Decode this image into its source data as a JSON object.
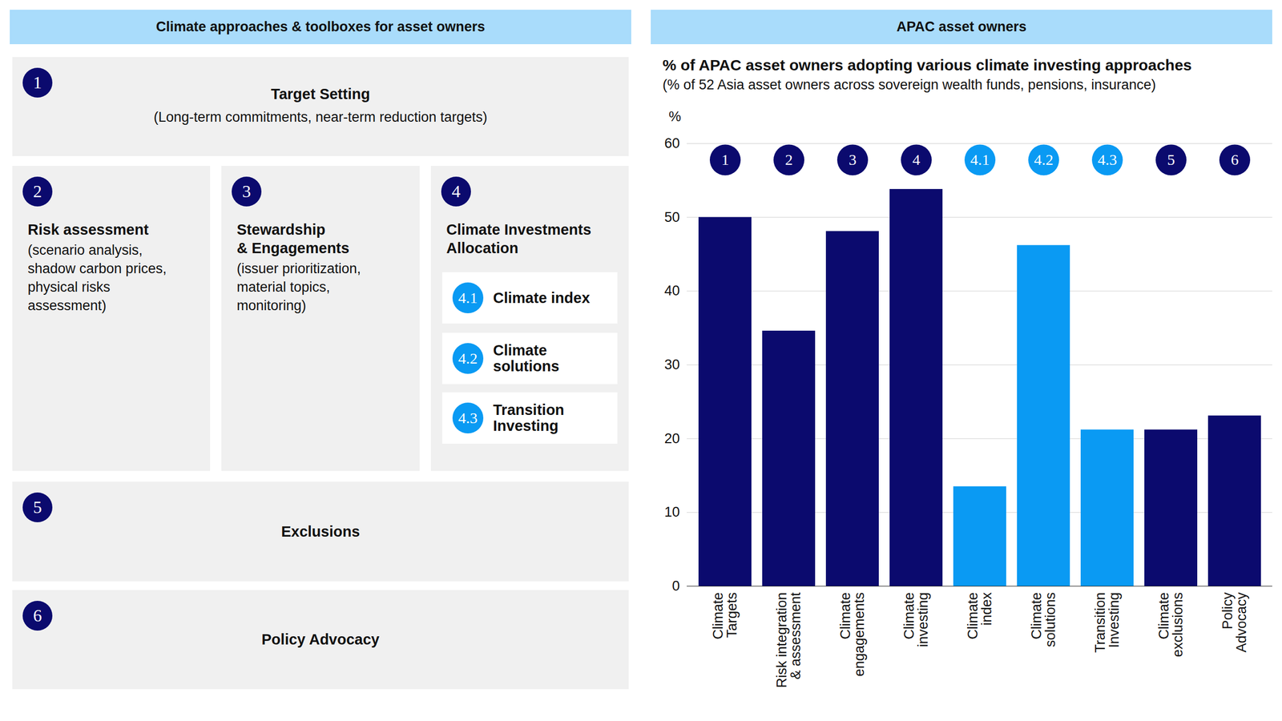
{
  "diagram": {
    "header": "Climate approaches & toolboxes for asset owners",
    "boxes": [
      {
        "badge": "1",
        "title": "Target Setting",
        "subtitle": "(Long-term commitments, near-term reduction targets)"
      },
      {
        "badge": "2",
        "title": "Risk assessment",
        "subtitle": "(scenario analysis,\nshadow carbon prices,\nphysical risks\nassessment)"
      },
      {
        "badge": "3",
        "title": "Stewardship\n& Engagements",
        "subtitle": "(issuer prioritization,\nmaterial topics,\nmonitoring)"
      },
      {
        "badge": "4",
        "title": "Climate Investments\nAllocation",
        "items": [
          {
            "badge": "4.1",
            "label": "Climate index"
          },
          {
            "badge": "4.2",
            "label": "Climate\nsolutions"
          },
          {
            "badge": "4.3",
            "label": "Transition\nInvesting"
          }
        ]
      },
      {
        "badge": "5",
        "title": "Exclusions"
      },
      {
        "badge": "6",
        "title": "Policy Advocacy"
      }
    ]
  },
  "chart_data": {
    "type": "bar",
    "header": "APAC asset owners",
    "title": "% of APAC asset owners adopting various climate investing approaches",
    "subtitle": "(% of 52 Asia asset owners across sovereign wealth funds, pensions, insurance)",
    "y_label": "%",
    "categories": [
      "Climate\nTargets",
      "Risk integration\n& assessment",
      "Climate\nengagements",
      "Climate\ninvesting",
      "Climate\nindex",
      "Climate\nsolutions",
      "Transition\nInvesting",
      "Climate\nexclusions",
      "Policy\nAdvocacy"
    ],
    "badges": [
      "1",
      "2",
      "3",
      "4",
      "4.1",
      "4.2",
      "4.3",
      "5",
      "6"
    ],
    "values": [
      50,
      34.6,
      48.1,
      53.8,
      13.5,
      46.2,
      21.2,
      21.2,
      23.1
    ],
    "colors": [
      "#0b0a6e",
      "#0b0a6e",
      "#0b0a6e",
      "#0b0a6e",
      "#0a9af3",
      "#0a9af3",
      "#0a9af3",
      "#0b0a6e",
      "#0b0a6e"
    ],
    "ylim": [
      0,
      60
    ],
    "yticks": [
      0,
      10,
      20,
      30,
      40,
      50,
      60
    ],
    "grid": true
  }
}
